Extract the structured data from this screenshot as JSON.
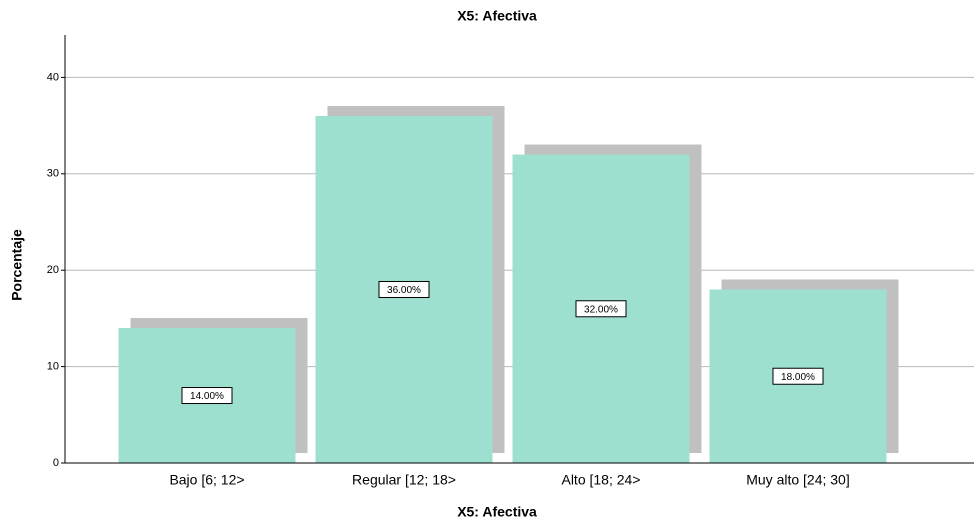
{
  "chart_data": {
    "type": "bar",
    "title": "X5: Afectiva",
    "x_label": "X5: Afectiva",
    "y_label": "Porcentaje",
    "categories": [
      "Bajo [6; 12>",
      "Regular [12; 18>",
      "Alto [18; 24>",
      "Muy alto [24; 30]"
    ],
    "values": [
      14,
      36,
      32,
      18
    ],
    "value_labels": [
      "14.00%",
      "36.00%",
      "32.00%",
      "18.00%"
    ],
    "color": "#9de0cf",
    "shadow_color": "#c0c0c0",
    "ylim": [
      0,
      44.4
    ],
    "yticks": [
      0,
      10,
      20,
      30,
      40
    ],
    "grid": true
  }
}
